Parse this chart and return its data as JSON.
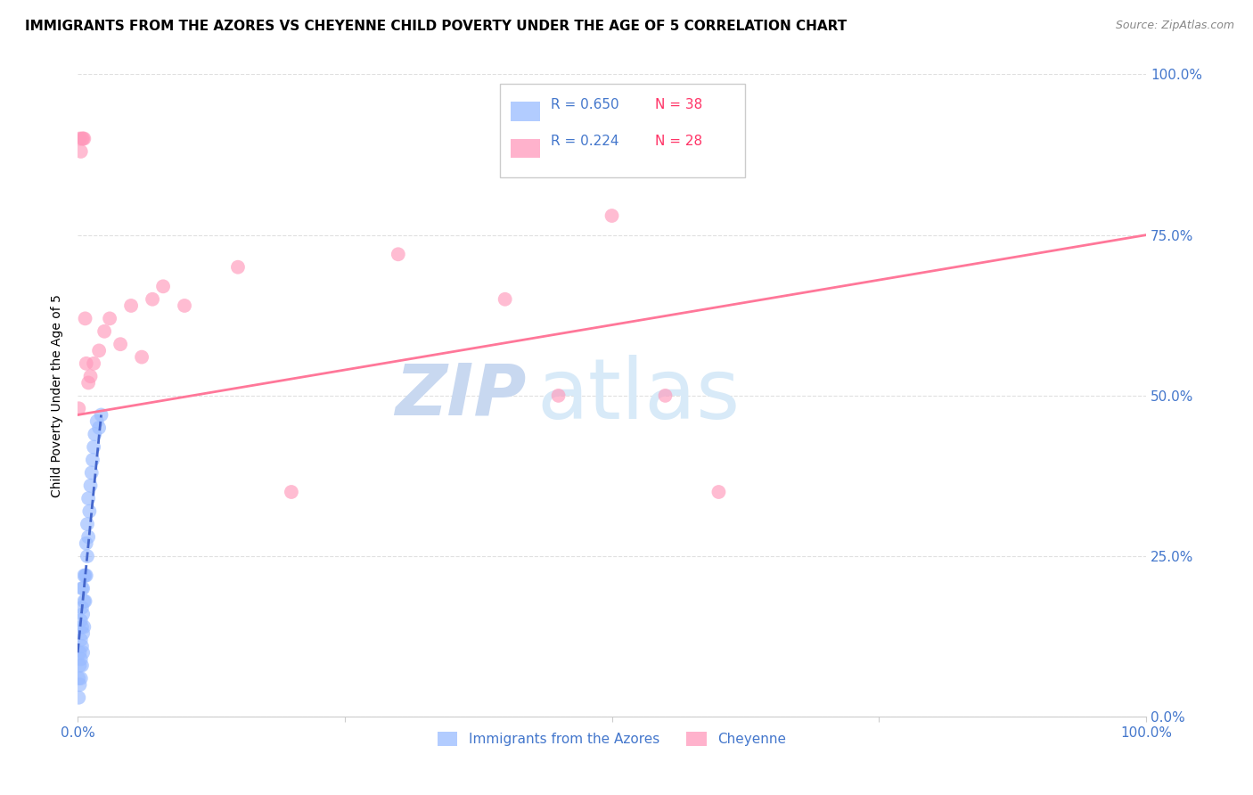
{
  "title": "IMMIGRANTS FROM THE AZORES VS CHEYENNE CHILD POVERTY UNDER THE AGE OF 5 CORRELATION CHART",
  "source": "Source: ZipAtlas.com",
  "ylabel": "Child Poverty Under the Age of 5",
  "xmin": 0.0,
  "xmax": 1.0,
  "ymin": 0.0,
  "ymax": 1.0,
  "watermark_zip": "ZIP",
  "watermark_atlas": "atlas",
  "legend_blue_r": "R = 0.650",
  "legend_blue_n": "N = 38",
  "legend_pink_r": "R = 0.224",
  "legend_pink_n": "N = 28",
  "legend_label_blue": "Immigrants from the Azores",
  "legend_label_pink": "Cheyenne",
  "blue_color": "#99BBFF",
  "pink_color": "#FF99BB",
  "blue_line_color": "#4466CC",
  "pink_line_color": "#FF7799",
  "blue_scatter_x": [
    0.001,
    0.001,
    0.002,
    0.002,
    0.002,
    0.003,
    0.003,
    0.003,
    0.003,
    0.004,
    0.004,
    0.004,
    0.004,
    0.004,
    0.005,
    0.005,
    0.005,
    0.005,
    0.006,
    0.006,
    0.006,
    0.007,
    0.007,
    0.008,
    0.008,
    0.009,
    0.009,
    0.01,
    0.01,
    0.011,
    0.012,
    0.013,
    0.014,
    0.015,
    0.016,
    0.018,
    0.02,
    0.022
  ],
  "blue_scatter_y": [
    0.03,
    0.06,
    0.05,
    0.08,
    0.1,
    0.06,
    0.09,
    0.12,
    0.15,
    0.08,
    0.11,
    0.14,
    0.17,
    0.2,
    0.1,
    0.13,
    0.16,
    0.2,
    0.14,
    0.18,
    0.22,
    0.18,
    0.22,
    0.22,
    0.27,
    0.25,
    0.3,
    0.28,
    0.34,
    0.32,
    0.36,
    0.38,
    0.4,
    0.42,
    0.44,
    0.46,
    0.45,
    0.47
  ],
  "pink_scatter_x": [
    0.001,
    0.002,
    0.003,
    0.004,
    0.005,
    0.006,
    0.007,
    0.008,
    0.01,
    0.012,
    0.015,
    0.02,
    0.025,
    0.03,
    0.04,
    0.05,
    0.06,
    0.07,
    0.08,
    0.1,
    0.15,
    0.2,
    0.3,
    0.4,
    0.45,
    0.5,
    0.55,
    0.6
  ],
  "pink_scatter_y": [
    0.48,
    0.9,
    0.88,
    0.9,
    0.9,
    0.9,
    0.62,
    0.55,
    0.52,
    0.53,
    0.55,
    0.57,
    0.6,
    0.62,
    0.58,
    0.64,
    0.56,
    0.65,
    0.67,
    0.64,
    0.7,
    0.35,
    0.72,
    0.65,
    0.5,
    0.78,
    0.5,
    0.35
  ],
  "blue_trendline_x": [
    0.0,
    0.022
  ],
  "blue_trendline_y": [
    0.1,
    0.47
  ],
  "pink_trendline_x": [
    0.0,
    1.0
  ],
  "pink_trendline_y": [
    0.47,
    0.75
  ],
  "grid_color": "#E0E0E0",
  "background_color": "#FFFFFF",
  "title_fontsize": 11,
  "source_fontsize": 9,
  "watermark_fontsize_zip": 58,
  "watermark_fontsize_atlas": 68,
  "watermark_color_zip": "#C8D8F0",
  "watermark_color_atlas": "#D8EAF8"
}
